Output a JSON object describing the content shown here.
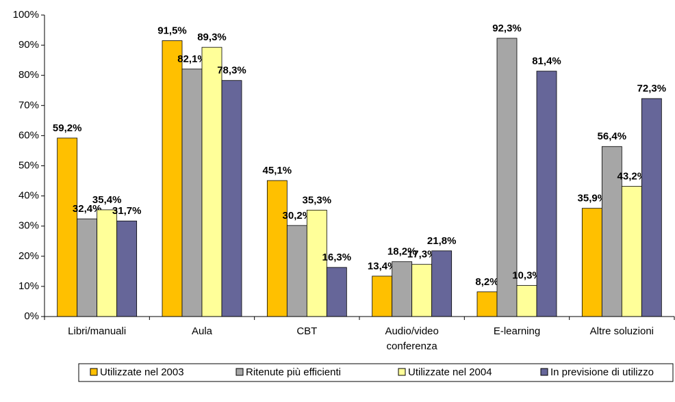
{
  "chart_data": {
    "type": "bar",
    "categories": [
      "Libri/manuali",
      "Aula",
      "CBT",
      "Audio/video conferenza",
      "E-learning",
      "Altre soluzioni"
    ],
    "series": [
      {
        "name": "Utilizzate nel 2003",
        "color": "#ffc000",
        "values": [
          59.2,
          91.5,
          45.1,
          13.4,
          8.2,
          35.9
        ],
        "value_labels": [
          "59,2%",
          "91,5%",
          "45,1%",
          "13,4%",
          "8,2%",
          "35,9%"
        ]
      },
      {
        "name": "Ritenute più efficienti",
        "color": "#a6a6a6",
        "values": [
          32.4,
          82.1,
          30.2,
          18.2,
          92.3,
          56.4
        ],
        "value_labels": [
          "32,4%",
          "82,1%",
          "30,2%",
          "18,2%",
          "92,3%",
          "56,4%"
        ]
      },
      {
        "name": "Utilizzate nel 2004",
        "color": "#ffff99",
        "values": [
          35.4,
          89.3,
          35.3,
          17.3,
          10.3,
          43.2
        ],
        "value_labels": [
          "35,4%",
          "89,3%",
          "35,3%",
          "17,3%",
          "10,3%",
          "43,2%"
        ]
      },
      {
        "name": "In previsione di utilizzo",
        "color": "#666699",
        "values": [
          31.7,
          78.3,
          16.3,
          21.8,
          81.4,
          72.3
        ],
        "value_labels": [
          "31,7%",
          "78,3%",
          "16,3%",
          "21,8%",
          "81,4%",
          "72,3%"
        ]
      }
    ],
    "ylim": [
      0,
      100
    ],
    "yticks": [
      {
        "value": 0,
        "label": "0%"
      },
      {
        "value": 10,
        "label": "10%"
      },
      {
        "value": 20,
        "label": "20%"
      },
      {
        "value": 30,
        "label": "30%"
      },
      {
        "value": 40,
        "label": "40%"
      },
      {
        "value": 50,
        "label": "50%"
      },
      {
        "value": 60,
        "label": "60%"
      },
      {
        "value": 70,
        "label": "70%"
      },
      {
        "value": 80,
        "label": "80%"
      },
      {
        "value": 90,
        "label": "90%"
      },
      {
        "value": 100,
        "label": "100%"
      }
    ],
    "legend": "bottom"
  }
}
